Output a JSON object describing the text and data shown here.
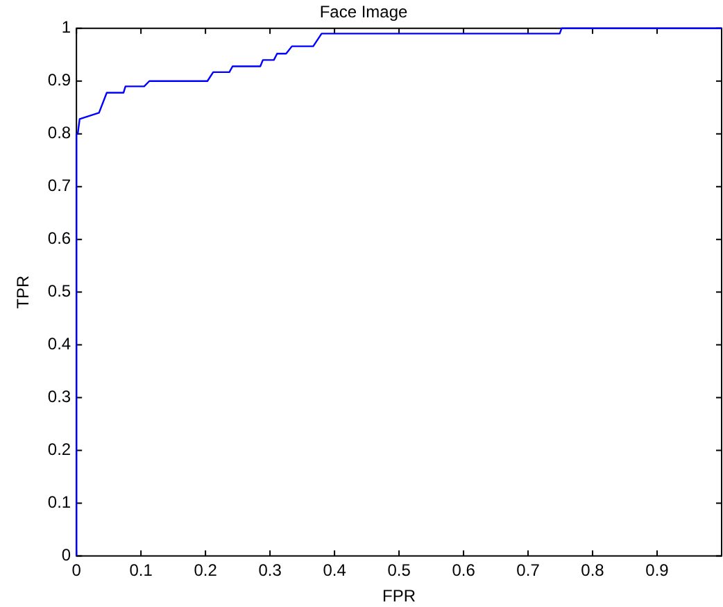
{
  "chart_data": {
    "type": "step",
    "title": "Face Image",
    "xlabel": "FPR",
    "ylabel": "TPR",
    "xlim": [
      0,
      1
    ],
    "ylim": [
      0,
      1
    ],
    "xticks": [
      0,
      0.1,
      0.2,
      0.3,
      0.4,
      0.5,
      0.6,
      0.7,
      0.8,
      0.9
    ],
    "yticks": [
      0,
      0.1,
      0.2,
      0.3,
      0.4,
      0.5,
      0.6,
      0.7,
      0.8,
      0.9,
      1
    ],
    "grid": false,
    "legend": false,
    "marker": "none",
    "line_style": "solid",
    "series": [
      {
        "color": "#0000ff",
        "x": [
          0,
          0,
          0.002,
          0.005,
          0.035,
          0.047,
          0.073,
          0.076,
          0.105,
          0.113,
          0.203,
          0.212,
          0.237,
          0.242,
          0.285,
          0.289,
          0.306,
          0.311,
          0.325,
          0.334,
          0.367,
          0.38,
          0.749,
          0.752,
          1
        ],
        "values": [
          0,
          0.8,
          0.8,
          0.828,
          0.84,
          0.878,
          0.878,
          0.89,
          0.89,
          0.9,
          0.9,
          0.917,
          0.917,
          0.928,
          0.928,
          0.94,
          0.94,
          0.952,
          0.952,
          0.966,
          0.966,
          0.99,
          0.99,
          1,
          1
        ]
      }
    ]
  }
}
